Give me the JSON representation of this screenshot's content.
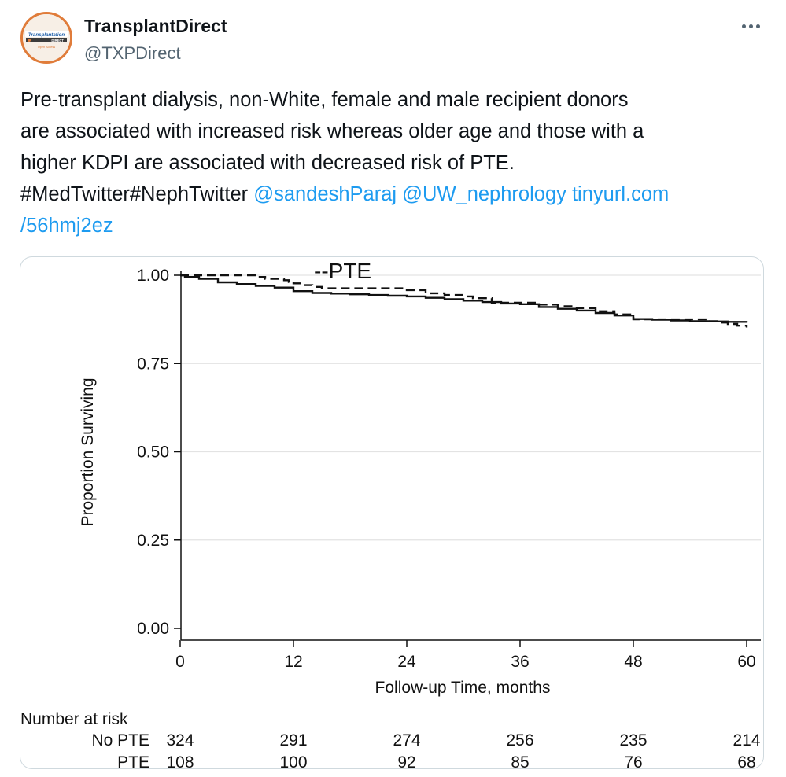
{
  "account": {
    "display_name": "TransplantDirect",
    "handle": "@TXPDirect",
    "avatar_logo_text": "Transplantation",
    "avatar_logo_sub": "DIRECT",
    "avatar_logo_badge": "Open Access"
  },
  "tweet": {
    "line1": "Pre-transplant dialysis, non-White, female  and male recipient donors",
    "line2": "are associated with increased risk whereas older age and those with a",
    "line3": "higher KDPI are associated with decreased risk of PTE.",
    "hashtags": "#MedTwitter#NephTwitter",
    "mention1": "@sandeshParaj",
    "mention2": "@UW_nephrology",
    "link_part1": "tinyurl.com",
    "link_part2": "/56hmj2ez"
  },
  "chart_data": {
    "type": "line",
    "title": "",
    "xlabel": "Follow-up Time, months",
    "ylabel": "Proportion Surviving",
    "xlim": [
      0,
      60
    ],
    "ylim": [
      0,
      1
    ],
    "x_ticks": [
      "0",
      "12",
      "24",
      "36",
      "48",
      "60"
    ],
    "y_ticks": [
      "0.00",
      "0.25",
      "0.50",
      "0.75",
      "1.00"
    ],
    "grid": true,
    "annotation": "--PTE",
    "series": [
      {
        "name": "No PTE",
        "style": "solid",
        "x": [
          0,
          0.5,
          2,
          4,
          6,
          8,
          10,
          12,
          14,
          16,
          18,
          20,
          22,
          24,
          26,
          28,
          30,
          32,
          34,
          36,
          38,
          40,
          42,
          44,
          46,
          48,
          50,
          52,
          54,
          56,
          58,
          60
        ],
        "y": [
          1.0,
          0.995,
          0.99,
          0.98,
          0.975,
          0.97,
          0.965,
          0.955,
          0.95,
          0.948,
          0.946,
          0.944,
          0.942,
          0.94,
          0.936,
          0.932,
          0.928,
          0.924,
          0.92,
          0.918,
          0.91,
          0.905,
          0.9,
          0.893,
          0.886,
          0.876,
          0.874,
          0.872,
          0.87,
          0.869,
          0.868,
          0.866
        ]
      },
      {
        "name": "PTE",
        "style": "dashed",
        "x": [
          0,
          2,
          4,
          6,
          8,
          9,
          10,
          11,
          11.5,
          12,
          13,
          14,
          15,
          16,
          18,
          20,
          22,
          24,
          26,
          28,
          30,
          31,
          33,
          35,
          38,
          40,
          42,
          44,
          46,
          48,
          50,
          52,
          54,
          56,
          57,
          58,
          59,
          60
        ],
        "y": [
          1.0,
          1.0,
          1.0,
          1.0,
          0.995,
          0.99,
          0.99,
          0.986,
          0.981,
          0.977,
          0.972,
          0.967,
          0.963,
          0.963,
          0.963,
          0.963,
          0.963,
          0.958,
          0.949,
          0.944,
          0.94,
          0.935,
          0.922,
          0.922,
          0.917,
          0.912,
          0.907,
          0.898,
          0.889,
          0.875,
          0.875,
          0.875,
          0.875,
          0.87,
          0.866,
          0.862,
          0.857,
          0.852
        ]
      }
    ],
    "risk_table": {
      "header": "Number at risk",
      "rows": [
        {
          "label": "No PTE",
          "values": [
            "324",
            "291",
            "274",
            "256",
            "235",
            "214"
          ]
        },
        {
          "label": "PTE",
          "values": [
            "108",
            "100",
            "92",
            "85",
            "76",
            "68"
          ]
        }
      ]
    }
  }
}
